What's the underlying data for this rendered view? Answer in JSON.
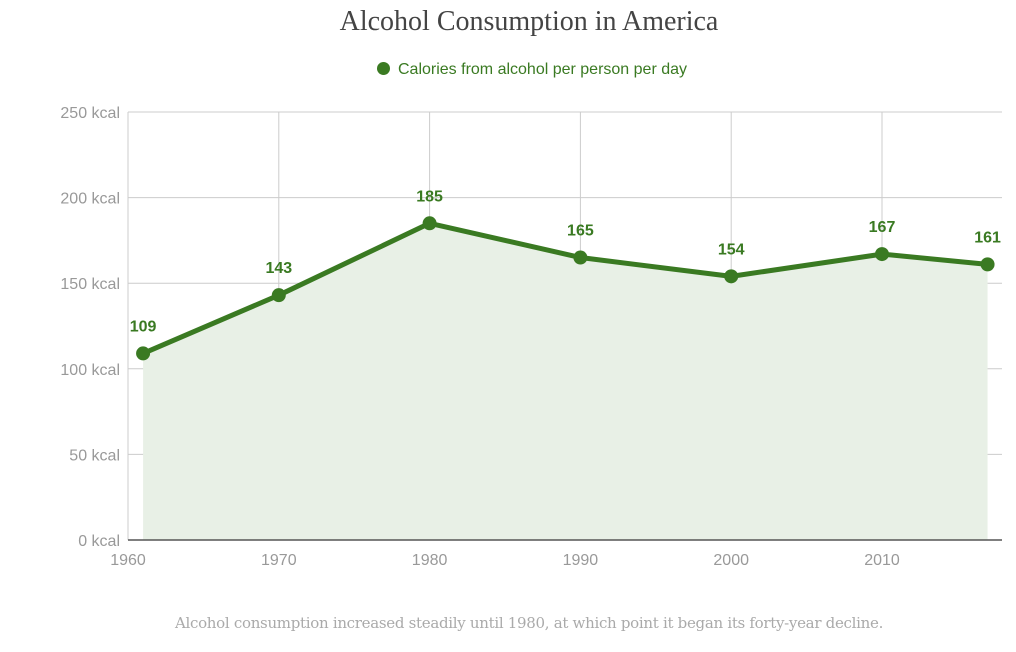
{
  "chart_data": {
    "type": "area",
    "title": "Alcohol Consumption in America",
    "legend": {
      "position": "top-center",
      "entries": [
        "Calories from alcohol per person per day"
      ]
    },
    "xlabel": "",
    "ylabel": "",
    "xlim": [
      1960,
      2018
    ],
    "ylim": [
      0,
      250
    ],
    "x_ticks": [
      1960,
      1970,
      1980,
      1990,
      2000,
      2010
    ],
    "x_tick_labels": [
      "1960",
      "1970",
      "1980",
      "1990",
      "2000",
      "2010"
    ],
    "y_ticks": [
      0,
      50,
      100,
      150,
      200,
      250
    ],
    "y_tick_labels": [
      "0 kcal",
      "50 kcal",
      "100 kcal",
      "150 kcal",
      "200 kcal",
      "250 kcal"
    ],
    "grid": true,
    "series": [
      {
        "name": "Calories from alcohol per person per day",
        "color": "#3a7a22",
        "fill": "#e8f0e6",
        "x": [
          1961,
          1970,
          1980,
          1990,
          2000,
          2010,
          2017
        ],
        "values": [
          109,
          143,
          185,
          165,
          154,
          167,
          161
        ],
        "labels": [
          "109",
          "143",
          "185",
          "165",
          "154",
          "167",
          "161"
        ]
      }
    ],
    "caption": "Alcohol consumption increased steadily until 1980, at which point it began its forty-year decline."
  }
}
